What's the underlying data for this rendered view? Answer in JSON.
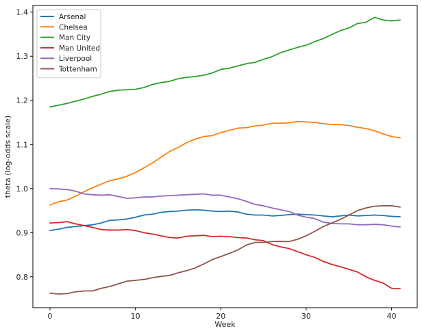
{
  "chart_data": {
    "type": "line",
    "title": "",
    "xlabel": "Week",
    "ylabel": "theta (log-odds scale)",
    "xlim": [
      -2,
      43
    ],
    "ylim": [
      0.73,
      1.415
    ],
    "xticks": [
      0,
      10,
      20,
      30,
      40
    ],
    "yticks": [
      0.8,
      0.9,
      1.0,
      1.1,
      1.2,
      1.3,
      1.4
    ],
    "ytick_labels": [
      "0.8",
      "0.9",
      "1.0",
      "1.1",
      "1.2",
      "1.3",
      "1.4"
    ],
    "grid": false,
    "legend_position": "top-left",
    "x": [
      0,
      1,
      2,
      3,
      4,
      5,
      6,
      7,
      8,
      9,
      10,
      11,
      12,
      13,
      14,
      15,
      16,
      17,
      18,
      19,
      20,
      21,
      22,
      23,
      24,
      25,
      26,
      27,
      28,
      29,
      30,
      31,
      32,
      33,
      34,
      35,
      36,
      37,
      38,
      39,
      40,
      41
    ],
    "series": [
      {
        "name": "Arsenal",
        "color": "#1f77b4",
        "values": [
          0.905,
          0.908,
          0.912,
          0.914,
          0.916,
          0.918,
          0.922,
          0.928,
          0.929,
          0.931,
          0.935,
          0.94,
          0.942,
          0.946,
          0.948,
          0.949,
          0.951,
          0.952,
          0.951,
          0.949,
          0.948,
          0.949,
          0.947,
          0.942,
          0.94,
          0.94,
          0.938,
          0.939,
          0.941,
          0.942,
          0.941,
          0.94,
          0.938,
          0.936,
          0.938,
          0.94,
          0.938,
          0.939,
          0.94,
          0.939,
          0.937,
          0.936
        ]
      },
      {
        "name": "Chelsea",
        "color": "#ff7f0e",
        "values": [
          0.963,
          0.97,
          0.974,
          0.983,
          0.993,
          1.002,
          1.01,
          1.018,
          1.022,
          1.028,
          1.036,
          1.047,
          1.058,
          1.071,
          1.084,
          1.093,
          1.104,
          1.112,
          1.118,
          1.12,
          1.127,
          1.132,
          1.137,
          1.138,
          1.142,
          1.144,
          1.148,
          1.148,
          1.149,
          1.152,
          1.151,
          1.15,
          1.147,
          1.145,
          1.145,
          1.143,
          1.139,
          1.136,
          1.131,
          1.124,
          1.118,
          1.115
        ]
      },
      {
        "name": "Man City",
        "color": "#2ca02c",
        "values": [
          1.185,
          1.189,
          1.193,
          1.198,
          1.203,
          1.209,
          1.214,
          1.22,
          1.223,
          1.224,
          1.225,
          1.229,
          1.236,
          1.24,
          1.243,
          1.249,
          1.252,
          1.254,
          1.257,
          1.262,
          1.27,
          1.273,
          1.278,
          1.283,
          1.286,
          1.293,
          1.299,
          1.308,
          1.314,
          1.32,
          1.325,
          1.333,
          1.34,
          1.349,
          1.358,
          1.364,
          1.374,
          1.377,
          1.388,
          1.382,
          1.38,
          1.382
        ]
      },
      {
        "name": "Man United",
        "color": "#d62728",
        "values": [
          0.922,
          0.923,
          0.925,
          0.92,
          0.916,
          0.912,
          0.907,
          0.906,
          0.906,
          0.907,
          0.905,
          0.9,
          0.897,
          0.893,
          0.889,
          0.888,
          0.892,
          0.893,
          0.894,
          0.891,
          0.892,
          0.891,
          0.889,
          0.888,
          0.884,
          0.882,
          0.873,
          0.868,
          0.864,
          0.857,
          0.85,
          0.844,
          0.835,
          0.828,
          0.823,
          0.817,
          0.811,
          0.8,
          0.792,
          0.786,
          0.774,
          0.773
        ]
      },
      {
        "name": "Liverpool",
        "color": "#9467bd",
        "values": [
          1.0,
          0.999,
          0.998,
          0.994,
          0.988,
          0.986,
          0.985,
          0.986,
          0.982,
          0.978,
          0.979,
          0.981,
          0.981,
          0.983,
          0.984,
          0.985,
          0.986,
          0.987,
          0.988,
          0.985,
          0.985,
          0.981,
          0.977,
          0.971,
          0.964,
          0.961,
          0.956,
          0.952,
          0.948,
          0.94,
          0.935,
          0.932,
          0.924,
          0.921,
          0.92,
          0.92,
          0.918,
          0.918,
          0.919,
          0.918,
          0.915,
          0.913
        ]
      },
      {
        "name": "Tottenham",
        "color": "#8c564b",
        "values": [
          0.763,
          0.761,
          0.762,
          0.766,
          0.768,
          0.768,
          0.774,
          0.778,
          0.784,
          0.79,
          0.792,
          0.794,
          0.798,
          0.801,
          0.803,
          0.809,
          0.814,
          0.82,
          0.829,
          0.839,
          0.846,
          0.853,
          0.861,
          0.872,
          0.878,
          0.878,
          0.88,
          0.88,
          0.88,
          0.885,
          0.893,
          0.903,
          0.914,
          0.922,
          0.93,
          0.94,
          0.95,
          0.956,
          0.96,
          0.961,
          0.961,
          0.958
        ]
      }
    ]
  }
}
